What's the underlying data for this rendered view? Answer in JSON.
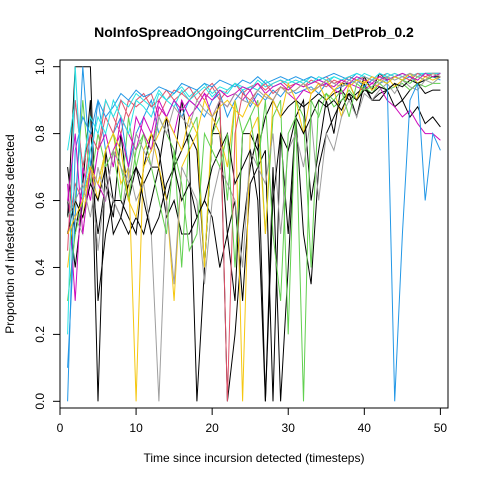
{
  "chart_data": {
    "type": "line",
    "title": "NoInfoSpreadOngoingCurrentClim_DetProb_0.2",
    "xlabel": "Time since incursion detected (timesteps)",
    "ylabel": "Proportion of infested nodes detected",
    "xlim": [
      0,
      51
    ],
    "ylim": [
      -0.02,
      1.02
    ],
    "xticks": [
      0,
      10,
      20,
      30,
      40,
      50
    ],
    "yticks": [
      0.0,
      0.2,
      0.4,
      0.6,
      0.8,
      1.0
    ],
    "xtick_labels": [
      "0",
      "10",
      "20",
      "30",
      "40",
      "50"
    ],
    "ytick_labels": [
      "0.0",
      "0.2",
      "0.4",
      "0.6",
      "0.8",
      "1.0"
    ],
    "grid": false,
    "legend": "none",
    "x": [
      1,
      2,
      3,
      4,
      5,
      6,
      7,
      8,
      9,
      10,
      11,
      12,
      13,
      14,
      15,
      16,
      17,
      18,
      19,
      20,
      21,
      22,
      23,
      24,
      25,
      26,
      27,
      28,
      29,
      30,
      31,
      32,
      33,
      34,
      35,
      36,
      37,
      38,
      39,
      40,
      41,
      42,
      43,
      44,
      45,
      46,
      47,
      48,
      49,
      50
    ],
    "series": [
      {
        "color": "#000000",
        "values": [
          0.55,
          1.0,
          1.0,
          1.0,
          0.3,
          0.5,
          0.6,
          0.55,
          0.5,
          0.55,
          0.5,
          0.6,
          0.7,
          0.55,
          0.6,
          0.5,
          0.5,
          0.55,
          0.6,
          0.55,
          0.4,
          0.5,
          0.6,
          0.3,
          0.65,
          0.7,
          0.75,
          0.0,
          0.8,
          0.5,
          0.85,
          0.9,
          0.6,
          0.75,
          0.9,
          0.8,
          0.95,
          0.95,
          0.9,
          0.97,
          0.93,
          0.98,
          0.96,
          0.97,
          0.96,
          0.98,
          0.97,
          0.98,
          0.98,
          0.98
        ]
      },
      {
        "color": "#000000",
        "values": [
          0.7,
          0.5,
          0.65,
          0.9,
          0.0,
          0.75,
          0.6,
          0.6,
          0.55,
          0.5,
          0.7,
          0.8,
          0.75,
          0.6,
          0.7,
          0.9,
          0.75,
          0.0,
          0.4,
          0.8,
          0.9,
          0.0,
          0.2,
          0.5,
          0.7,
          0.8,
          0.0,
          0.7,
          0.0,
          0.4,
          0.85,
          0.5,
          0.35,
          0.7,
          0.8,
          0.85,
          0.9,
          0.92,
          0.85,
          0.95,
          0.9,
          0.9,
          0.93,
          0.95,
          0.9,
          0.93,
          0.95,
          0.92,
          0.93,
          0.93
        ]
      },
      {
        "color": "#000000",
        "values": [
          0.6,
          0.4,
          0.6,
          0.7,
          0.5,
          0.65,
          0.55,
          0.8,
          0.6,
          0.7,
          0.65,
          0.7,
          0.7,
          0.85,
          0.7,
          0.75,
          0.8,
          0.75,
          0.4,
          0.8,
          0.8,
          0.5,
          0.3,
          0.8,
          0.8,
          0.75,
          0.85,
          0.9,
          0.85,
          0.88,
          0.9,
          0.88,
          0.9,
          0.92,
          0.9,
          0.92,
          0.93,
          0.9,
          0.92,
          0.94,
          0.9,
          0.92,
          0.93,
          0.88,
          0.9,
          0.85,
          0.88,
          0.83,
          0.85,
          0.82
        ]
      },
      {
        "color": "#DF536B",
        "values": [
          0.5,
          0.65,
          0.6,
          0.8,
          0.75,
          0.9,
          0.85,
          0.8,
          0.9,
          0.88,
          0.9,
          0.92,
          0.85,
          0.9,
          0.93,
          0.92,
          0.9,
          0.93,
          0.9,
          0.94,
          0.9,
          0.93,
          0.95,
          0.92,
          0.94,
          0.95,
          0.93,
          0.95,
          0.96,
          0.94,
          0.95,
          0.96,
          0.95,
          0.96,
          0.97,
          0.95,
          0.96,
          0.97,
          0.96,
          0.97,
          0.96,
          0.97,
          0.98,
          0.97,
          0.98,
          0.97,
          0.98,
          0.97,
          0.98,
          0.98
        ]
      },
      {
        "color": "#61D04F",
        "values": [
          0.55,
          0.6,
          0.9,
          0.65,
          0.8,
          0.7,
          0.75,
          0.6,
          0.85,
          0.7,
          0.8,
          0.75,
          0.85,
          0.8,
          0.75,
          0.4,
          0.8,
          0.85,
          0.4,
          0.8,
          0.85,
          0.6,
          0.9,
          0.8,
          0.85,
          0.9,
          0.5,
          0.85,
          0.9,
          0.2,
          0.9,
          0.85,
          0.4,
          0.9,
          0.92,
          0.88,
          0.9,
          0.93,
          0.9,
          0.94,
          0.92,
          0.95,
          0.93,
          0.94,
          0.95,
          0.93,
          0.95,
          0.94,
          0.95,
          0.95
        ]
      },
      {
        "color": "#2297E6",
        "values": [
          0.1,
          0.55,
          1.0,
          0.7,
          0.9,
          0.75,
          0.8,
          0.85,
          0.7,
          0.8,
          0.85,
          0.9,
          0.8,
          0.85,
          0.9,
          0.85,
          0.9,
          0.88,
          0.85,
          0.9,
          0.92,
          0.85,
          0.9,
          0.93,
          0.88,
          0.92,
          0.9,
          0.93,
          0.91,
          0.94,
          0.92,
          0.93,
          0.94,
          0.92,
          0.95,
          0.93,
          0.94,
          0.95,
          0.96,
          0.94,
          0.96,
          0.95,
          0.96,
          0.97,
          0.96,
          0.97,
          0.95,
          0.96,
          0.97,
          0.96
        ]
      },
      {
        "color": "#28E2E5",
        "values": [
          0.75,
          0.9,
          0.7,
          0.85,
          0.8,
          0.9,
          0.85,
          0.9,
          0.88,
          0.92,
          0.9,
          0.88,
          0.93,
          0.9,
          0.92,
          0.94,
          0.91,
          0.93,
          0.95,
          0.92,
          0.94,
          0.93,
          0.95,
          0.94,
          0.93,
          0.96,
          0.94,
          0.95,
          0.96,
          0.95,
          0.96,
          0.95,
          0.97,
          0.96,
          0.95,
          0.97,
          0.96,
          0.97,
          0.96,
          0.98,
          0.97,
          0.96,
          0.98,
          0.97,
          0.98,
          0.97,
          0.98,
          0.98,
          0.97,
          0.98
        ]
      },
      {
        "color": "#CD0BBC",
        "values": [
          0.65,
          0.3,
          0.7,
          0.6,
          0.75,
          0.8,
          0.7,
          0.85,
          0.8,
          0.75,
          0.85,
          0.8,
          0.9,
          0.85,
          0.8,
          0.9,
          0.85,
          0.88,
          0.92,
          0.85,
          0.9,
          0.88,
          0.92,
          0.9,
          0.93,
          0.88,
          0.92,
          0.9,
          0.94,
          0.92,
          0.9,
          0.93,
          0.92,
          0.94,
          0.95,
          0.93,
          0.92,
          0.95,
          0.94,
          0.93,
          0.95,
          0.94,
          0.9,
          0.88,
          0.85,
          0.87,
          0.83,
          0.8,
          0.8,
          0.78
        ]
      },
      {
        "color": "#F5C710",
        "values": [
          0.4,
          0.6,
          0.55,
          0.7,
          0.6,
          0.75,
          0.8,
          0.65,
          0.7,
          0.0,
          0.75,
          0.8,
          0.7,
          0.6,
          0.3,
          0.7,
          0.75,
          0.8,
          0.4,
          0.85,
          0.8,
          0.7,
          0.9,
          0.0,
          0.8,
          0.85,
          0.5,
          0.9,
          0.85,
          0.95,
          0.9,
          0.8,
          0.92,
          0.95,
          0.9,
          0.93,
          0.85,
          0.95,
          0.9,
          0.96,
          0.93,
          0.95,
          0.97,
          0.94,
          0.96,
          0.98,
          0.95,
          0.97,
          0.96,
          0.97
        ]
      },
      {
        "color": "#9E9E9E",
        "values": [
          0.6,
          0.55,
          0.5,
          0.7,
          0.45,
          0.65,
          0.6,
          0.55,
          0.7,
          0.6,
          0.65,
          0.5,
          0.0,
          0.6,
          0.35,
          0.7,
          0.65,
          0.6,
          0.35,
          0.6,
          0.7,
          0.65,
          0.6,
          0.4,
          0.75,
          0.7,
          0.65,
          0.8,
          0.5,
          0.75,
          0.8,
          0.7,
          0.85,
          0.6,
          0.8,
          0.75,
          0.85,
          0.9,
          0.85,
          0.92,
          0.9,
          0.93,
          0.95,
          0.92,
          0.96,
          0.94,
          0.93,
          0.96,
          0.95,
          0.97
        ]
      },
      {
        "color": "#000000",
        "values": [
          0.5,
          0.6,
          0.55,
          0.65,
          0.6,
          0.7,
          0.5,
          0.55,
          0.65,
          0.7,
          0.6,
          0.5,
          0.55,
          0.65,
          0.7,
          0.6,
          0.65,
          0.55,
          0.6,
          0.7,
          0.75,
          0.8,
          0.65,
          0.7,
          0.75,
          0.6,
          0.0,
          0.6,
          0.8,
          0.75,
          0.85,
          0.8,
          0.85,
          0.9,
          0.88,
          0.9,
          0.87,
          0.92,
          0.9,
          0.93,
          0.92,
          0.94,
          0.93,
          0.95,
          0.94,
          0.96,
          0.95,
          0.96,
          0.97,
          0.97
        ]
      },
      {
        "color": "#DF536B",
        "values": [
          0.45,
          0.9,
          0.7,
          0.8,
          0.75,
          0.85,
          0.8,
          0.9,
          0.85,
          0.9,
          0.92,
          0.88,
          0.9,
          0.93,
          0.9,
          0.92,
          0.94,
          0.9,
          0.93,
          0.95,
          0.92,
          0.0,
          0.8,
          0.92,
          0.9,
          0.93,
          0.95,
          0.92,
          0.94,
          0.93,
          0.95,
          0.94,
          0.96,
          0.95,
          0.94,
          0.96,
          0.95,
          0.97,
          0.96,
          0.95,
          0.97,
          0.96,
          0.97,
          0.98,
          0.97,
          0.96,
          0.98,
          0.97,
          0.98,
          0.97
        ]
      },
      {
        "color": "#61D04F",
        "values": [
          0.3,
          0.5,
          0.6,
          0.7,
          0.65,
          0.75,
          0.8,
          0.7,
          0.6,
          0.75,
          0.8,
          0.7,
          0.6,
          0.5,
          0.75,
          0.65,
          0.45,
          0.5,
          0.8,
          0.75,
          0.7,
          0.8,
          0.4,
          0.8,
          0.85,
          0.7,
          0.9,
          0.5,
          0.3,
          0.8,
          0.85,
          0.0,
          0.9,
          0.85,
          0.92,
          0.9,
          0.93,
          0.85,
          0.95,
          0.93,
          0.94,
          0.96,
          0.95,
          0.97,
          0.96,
          0.95,
          0.97,
          0.96,
          0.97,
          0.98
        ]
      },
      {
        "color": "#2297E6",
        "values": [
          0.0,
          0.75,
          0.85,
          0.8,
          0.9,
          0.85,
          0.88,
          0.92,
          0.9,
          0.93,
          0.91,
          0.92,
          0.94,
          0.93,
          0.92,
          0.95,
          0.94,
          0.93,
          0.95,
          0.94,
          0.96,
          0.95,
          0.94,
          0.96,
          0.95,
          0.97,
          0.95,
          0.96,
          0.97,
          0.96,
          0.97,
          0.96,
          0.97,
          0.96,
          0.97,
          0.98,
          0.97,
          0.96,
          0.98,
          0.97,
          0.96,
          0.98,
          0.97,
          0.0,
          0.5,
          0.9,
          0.95,
          0.6,
          0.8,
          0.75
        ]
      },
      {
        "color": "#28E2E5",
        "values": [
          0.2,
          1.0,
          0.6,
          0.75,
          0.85,
          0.8,
          0.9,
          0.85,
          0.8,
          0.9,
          0.88,
          0.85,
          0.92,
          0.9,
          0.88,
          0.93,
          0.9,
          0.92,
          0.94,
          0.91,
          0.93,
          0.92,
          0.95,
          0.93,
          0.94,
          0.93,
          0.96,
          0.94,
          0.95,
          0.96,
          0.95,
          0.96,
          0.95,
          0.97,
          0.96,
          0.97,
          0.96,
          0.97,
          0.98,
          0.97,
          0.96,
          0.98,
          0.97,
          0.98,
          0.97,
          0.98,
          0.97,
          0.98,
          0.98,
          0.98
        ]
      },
      {
        "color": "#CD0BBC",
        "values": [
          0.6,
          0.8,
          0.5,
          0.7,
          0.65,
          0.6,
          0.75,
          0.8,
          0.7,
          0.85,
          0.8,
          0.75,
          0.88,
          0.85,
          0.9,
          0.87,
          0.9,
          0.88,
          0.92,
          0.9,
          0.93,
          0.91,
          0.92,
          0.94,
          0.93,
          0.95,
          0.92,
          0.94,
          0.95,
          0.93,
          0.95,
          0.94,
          0.95,
          0.96,
          0.95,
          0.94,
          0.96,
          0.95,
          0.97,
          0.96,
          0.95,
          0.97,
          0.96,
          0.97,
          0.98,
          0.97,
          0.96,
          0.98,
          0.97,
          0.98
        ]
      },
      {
        "color": "#F5C710",
        "values": [
          0.5,
          0.55,
          0.6,
          0.7,
          0.65,
          0.75,
          0.8,
          0.75,
          0.6,
          0.55,
          0.7,
          0.75,
          0.8,
          0.85,
          0.8,
          0.75,
          0.85,
          0.8,
          0.9,
          0.85,
          0.88,
          0.9,
          0.87,
          0.85,
          0.9,
          0.88,
          0.92,
          0.9,
          0.94,
          0.92,
          0.93,
          0.95,
          0.92,
          0.94,
          0.96,
          0.93,
          0.95,
          0.94,
          0.96,
          0.95,
          0.97,
          0.96,
          0.95,
          0.97,
          0.96,
          0.98,
          0.97,
          0.96,
          0.98,
          0.97
        ]
      },
      {
        "color": "#9E9E9E",
        "values": [
          0.55,
          0.6,
          0.65,
          0.55,
          0.7,
          0.6,
          0.75,
          0.7,
          0.65,
          0.8,
          0.75,
          0.7,
          0.85,
          0.8,
          0.88,
          0.85,
          0.82,
          0.9,
          0.87,
          0.85,
          0.9,
          0.88,
          0.92,
          0.9,
          0.89,
          0.93,
          0.91,
          0.9,
          0.94,
          0.92,
          0.93,
          0.95,
          0.93,
          0.94,
          0.96,
          0.95,
          0.94,
          0.96,
          0.95,
          0.97,
          0.96,
          0.95,
          0.97,
          0.96,
          0.97,
          0.98,
          0.97,
          0.96,
          0.98,
          0.97
        ]
      }
    ]
  }
}
